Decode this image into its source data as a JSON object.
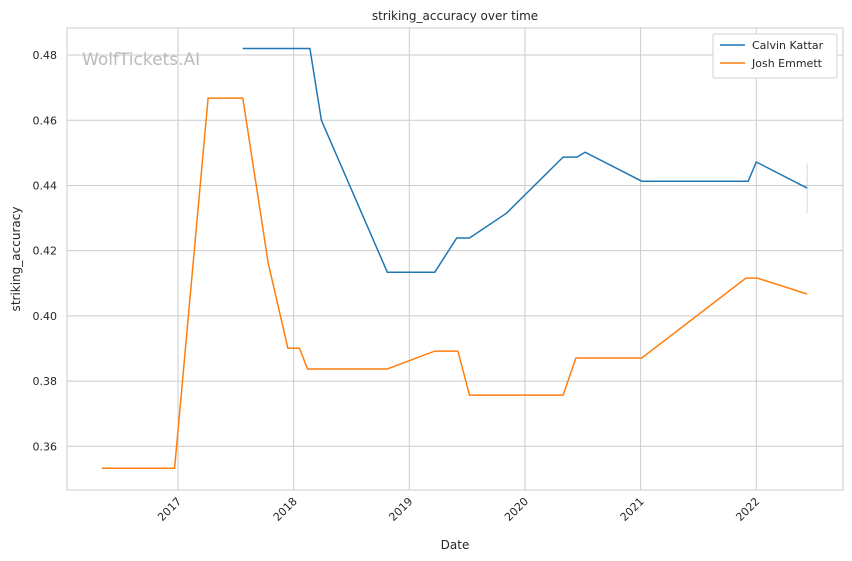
{
  "chart_data": {
    "type": "line",
    "title": "striking_accuracy over time",
    "xlabel": "Date",
    "ylabel": "striking_accuracy",
    "xlim": [
      2016.04,
      2022.75
    ],
    "ylim": [
      0.3466,
      0.4883
    ],
    "grid": true,
    "legend_position": "top-right",
    "watermark": "WolfTickets.AI",
    "x_ticks": [
      2017,
      2018,
      2019,
      2020,
      2021,
      2022
    ],
    "x_tick_labels": [
      "2017",
      "2018",
      "2019",
      "2020",
      "2021",
      "2022"
    ],
    "y_ticks": [
      0.36,
      0.38,
      0.4,
      0.42,
      0.44,
      0.46,
      0.48
    ],
    "y_tick_labels": [
      "0.36",
      "0.38",
      "0.40",
      "0.42",
      "0.44",
      "0.46",
      "0.48"
    ],
    "series": [
      {
        "name": "Calvin Kattar",
        "color": "#1f77b4",
        "x": [
          2017.56,
          2018.14,
          2018.24,
          2018.81,
          2019.22,
          2019.41,
          2019.52,
          2019.84,
          2020.33,
          2020.45,
          2020.52,
          2021.01,
          2021.93,
          2022.0,
          2022.44
        ],
        "y": [
          0.482,
          0.482,
          0.46,
          0.4134,
          0.4134,
          0.4239,
          0.4239,
          0.4315,
          0.4487,
          0.4487,
          0.4502,
          0.4413,
          0.4413,
          0.4472,
          0.4392
        ],
        "error_bar": {
          "x": 2022.44,
          "low": 0.4315,
          "high": 0.4468
        }
      },
      {
        "name": "Josh Emmett",
        "color": "#ff7f0e",
        "x": [
          2016.34,
          2016.97,
          2017.26,
          2017.56,
          2017.78,
          2017.95,
          2018.05,
          2018.12,
          2018.81,
          2019.22,
          2019.42,
          2019.52,
          2020.33,
          2020.44,
          2021.01,
          2021.91,
          2022.01,
          2022.44
        ],
        "y": [
          0.3533,
          0.3533,
          0.4668,
          0.4668,
          0.4162,
          0.3901,
          0.3901,
          0.3837,
          0.3837,
          0.3892,
          0.3892,
          0.3757,
          0.3757,
          0.3871,
          0.3871,
          0.4116,
          0.4116,
          0.4067
        ]
      }
    ]
  }
}
